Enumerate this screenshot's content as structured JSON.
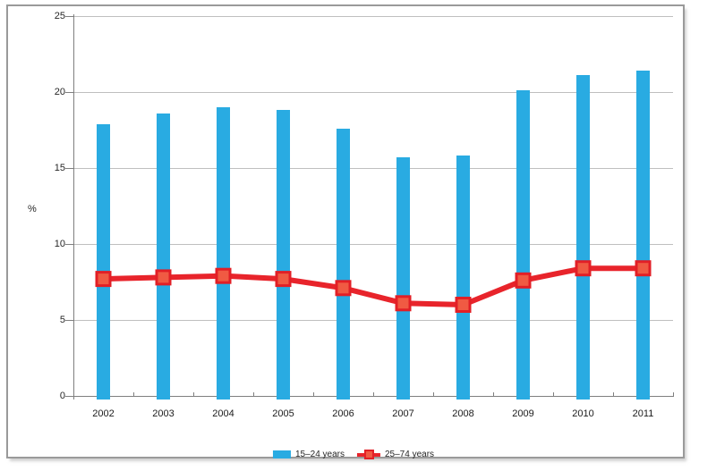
{
  "chart_data": {
    "type": "bar",
    "title": "",
    "categories": [
      "2002",
      "2003",
      "2004",
      "2005",
      "2006",
      "2007",
      "2008",
      "2009",
      "2010",
      "2011"
    ],
    "series": [
      {
        "name": "15–24 years",
        "type": "bar",
        "color": "#29ABE2",
        "values": [
          17.9,
          18.6,
          19.0,
          18.8,
          17.6,
          15.7,
          15.8,
          20.1,
          21.1,
          21.4
        ]
      },
      {
        "name": "25–74 years",
        "type": "line",
        "color": "#E8242B",
        "marker_fill": "#F05A43",
        "marker_border": "#E21F26",
        "values": [
          7.7,
          7.8,
          7.9,
          7.7,
          7.1,
          6.1,
          6.0,
          7.6,
          8.4,
          8.4
        ]
      }
    ],
    "xlabel": "",
    "ylabel": "%",
    "ylim": [
      0,
      25
    ],
    "yticks": [
      0,
      5,
      10,
      15,
      20,
      25
    ],
    "grid": true,
    "legend_position": "bottom"
  },
  "colors": {
    "bar_blue": "#29ABE2",
    "line_red": "#E8242B",
    "marker_fill": "#F05A43",
    "marker_border": "#E21F26",
    "gridline": "#bfbfbf",
    "axis": "#7f7f7f",
    "frame_border": "#9a9a9a",
    "text": "#262626"
  }
}
